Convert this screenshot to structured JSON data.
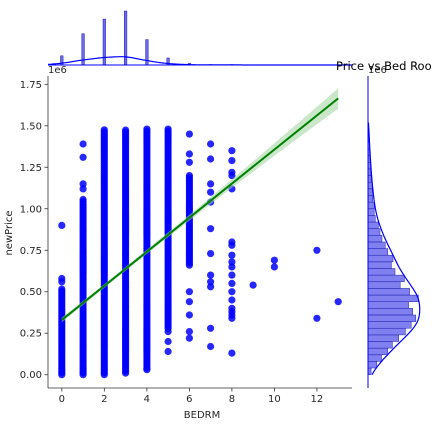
{
  "chart_data": {
    "type": "scatter",
    "title": "Price vs Bed Rooms",
    "xlabel": "BEDRM",
    "ylabel": "newPrice",
    "y_scale_note": "1e6",
    "x_ticks": [
      0,
      2,
      4,
      6,
      8,
      10,
      12
    ],
    "y_ticks": [
      0.0,
      0.25,
      0.5,
      0.75,
      1.0,
      1.25,
      1.5,
      1.75
    ],
    "y_tick_labels": [
      "0.00",
      "0.25",
      "0.50",
      "0.75",
      "1.00",
      "1.25",
      "1.50",
      "1.75"
    ],
    "xlim": [
      -0.65,
      13.65
    ],
    "ylim": [
      -0.08,
      1.8
    ],
    "point_color": "#0000ff",
    "fit_color": "#008000",
    "ci_color": "#9fd39f",
    "grid": false,
    "columns": [
      {
        "x": 0,
        "ymin": 0.0,
        "ymax": 0.52,
        "extra": [
          0.58,
          0.56,
          0.9
        ]
      },
      {
        "x": 1,
        "ymin": 0.0,
        "ymax": 1.06,
        "extra": [
          1.12,
          1.15,
          1.31,
          1.39
        ]
      },
      {
        "x": 2,
        "ymin": 0.0,
        "ymax": 1.48,
        "extra": []
      },
      {
        "x": 3,
        "ymin": 0.01,
        "ymax": 1.48,
        "extra": []
      },
      {
        "x": 4,
        "ymin": 0.04,
        "ymax": 1.48,
        "extra": [
          0.03
        ]
      },
      {
        "x": 5,
        "ymin": 0.28,
        "ymax": 1.49,
        "extra": [
          0.14,
          0.2,
          0.26
        ]
      },
      {
        "x": 6,
        "ymin": 0.66,
        "ymax": 1.2,
        "extra": [
          0.22,
          0.26,
          0.36,
          0.44,
          0.5,
          1.28,
          1.33,
          1.45
        ]
      },
      {
        "x": 7,
        "ymin": 0.0,
        "ymax": 0.0,
        "extra": [
          0.17,
          0.28,
          0.53,
          0.56,
          0.6,
          0.73,
          0.88,
          1.04,
          1.1,
          1.15,
          1.3,
          1.39
        ]
      },
      {
        "x": 8,
        "ymin": 0.0,
        "ymax": 0.0,
        "extra": [
          0.13,
          0.34,
          0.36,
          0.38,
          0.4,
          0.45,
          0.5,
          0.55,
          0.6,
          0.65,
          0.68,
          0.72,
          0.78,
          0.8,
          1.12,
          1.2,
          1.22,
          1.29,
          1.35
        ]
      },
      {
        "x": 9,
        "ymin": 0.0,
        "ymax": 0.0,
        "extra": [
          0.54
        ]
      },
      {
        "x": 10,
        "ymin": 0.0,
        "ymax": 0.0,
        "extra": [
          0.65,
          0.69
        ]
      },
      {
        "x": 12,
        "ymin": 0.0,
        "ymax": 0.0,
        "extra": [
          0.34,
          0.75
        ]
      },
      {
        "x": 13,
        "ymin": 0.0,
        "ymax": 0.0,
        "extra": [
          0.44
        ]
      }
    ],
    "fit_line": {
      "x": [
        0,
        13
      ],
      "y": [
        0.33,
        1.665
      ]
    },
    "x_marginal": {
      "values": [
        0,
        1,
        2,
        3,
        4,
        5,
        6,
        7,
        8
      ],
      "relative_heights": [
        0.17,
        0.58,
        0.85,
        1.0,
        0.47,
        0.13,
        0.03,
        0.01,
        0.01
      ]
    },
    "y_marginal": {
      "bin_width": 0.04,
      "relative_counts": [
        0.06,
        0.17,
        0.26,
        0.38,
        0.47,
        0.59,
        0.72,
        0.83,
        0.92,
        0.86,
        0.78,
        0.97,
        0.8,
        0.62,
        0.7,
        0.52,
        0.45,
        0.48,
        0.38,
        0.33,
        0.27,
        0.23,
        0.2,
        0.14,
        0.12,
        0.12,
        0.09,
        0.08,
        0.08,
        0.06,
        0.05,
        0.05,
        0.04,
        0.03,
        0.03,
        0.02,
        0.02,
        0.01
      ]
    }
  }
}
